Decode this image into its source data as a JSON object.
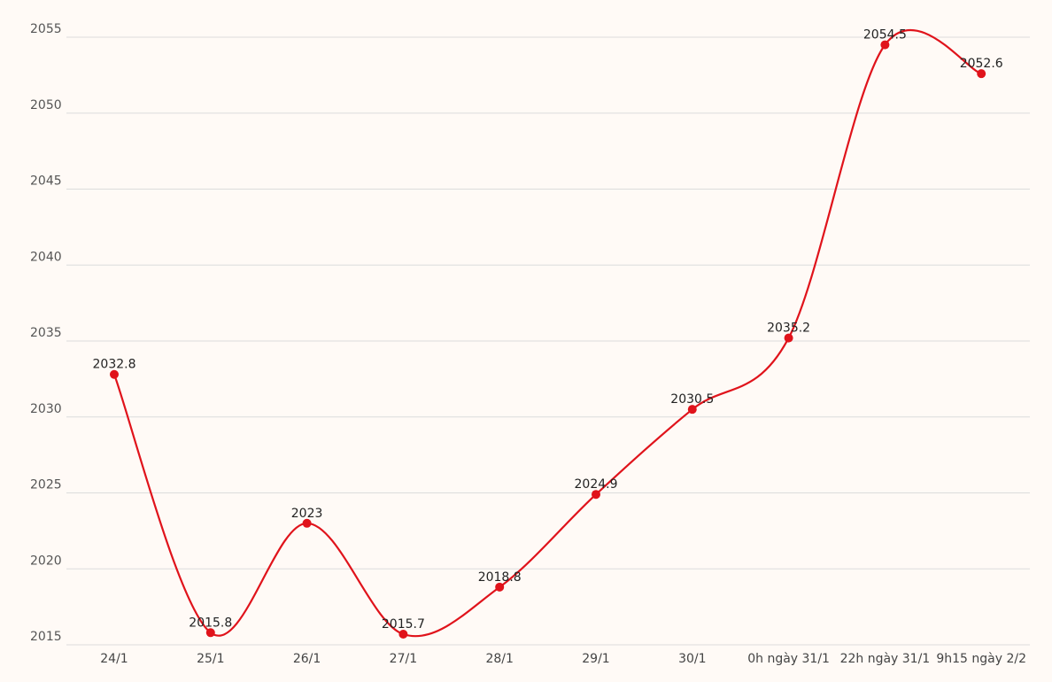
{
  "chart_data": {
    "type": "line",
    "title": "",
    "xlabel": "",
    "ylabel": "",
    "categories": [
      "24/1",
      "25/1",
      "26/1",
      "27/1",
      "28/1",
      "29/1",
      "30/1",
      "0h ngày 31/1",
      "22h ngày 31/1",
      "9h15 ngày 2/2"
    ],
    "series": [
      {
        "values": [
          2032.8,
          2015.8,
          2023,
          2015.7,
          2018.8,
          2024.9,
          2030.5,
          2035.2,
          2054.5,
          2052.6
        ],
        "labels": [
          "2032.8",
          "2015.8",
          "2023",
          "2015.7",
          "2018.8",
          "2024.9",
          "2030.5",
          "2035.2",
          "2054.5",
          "2052.6"
        ],
        "color": "#e0131b"
      }
    ],
    "ylim": [
      2015,
      2055
    ],
    "yticks": [
      2015,
      2020,
      2025,
      2030,
      2035,
      2040,
      2045,
      2050,
      2055
    ],
    "ytick_labels": [
      "2015",
      "2020",
      "2025",
      "2030",
      "2035",
      "2040",
      "2045",
      "2050",
      "2055"
    ],
    "grid": true,
    "legend": "none"
  }
}
